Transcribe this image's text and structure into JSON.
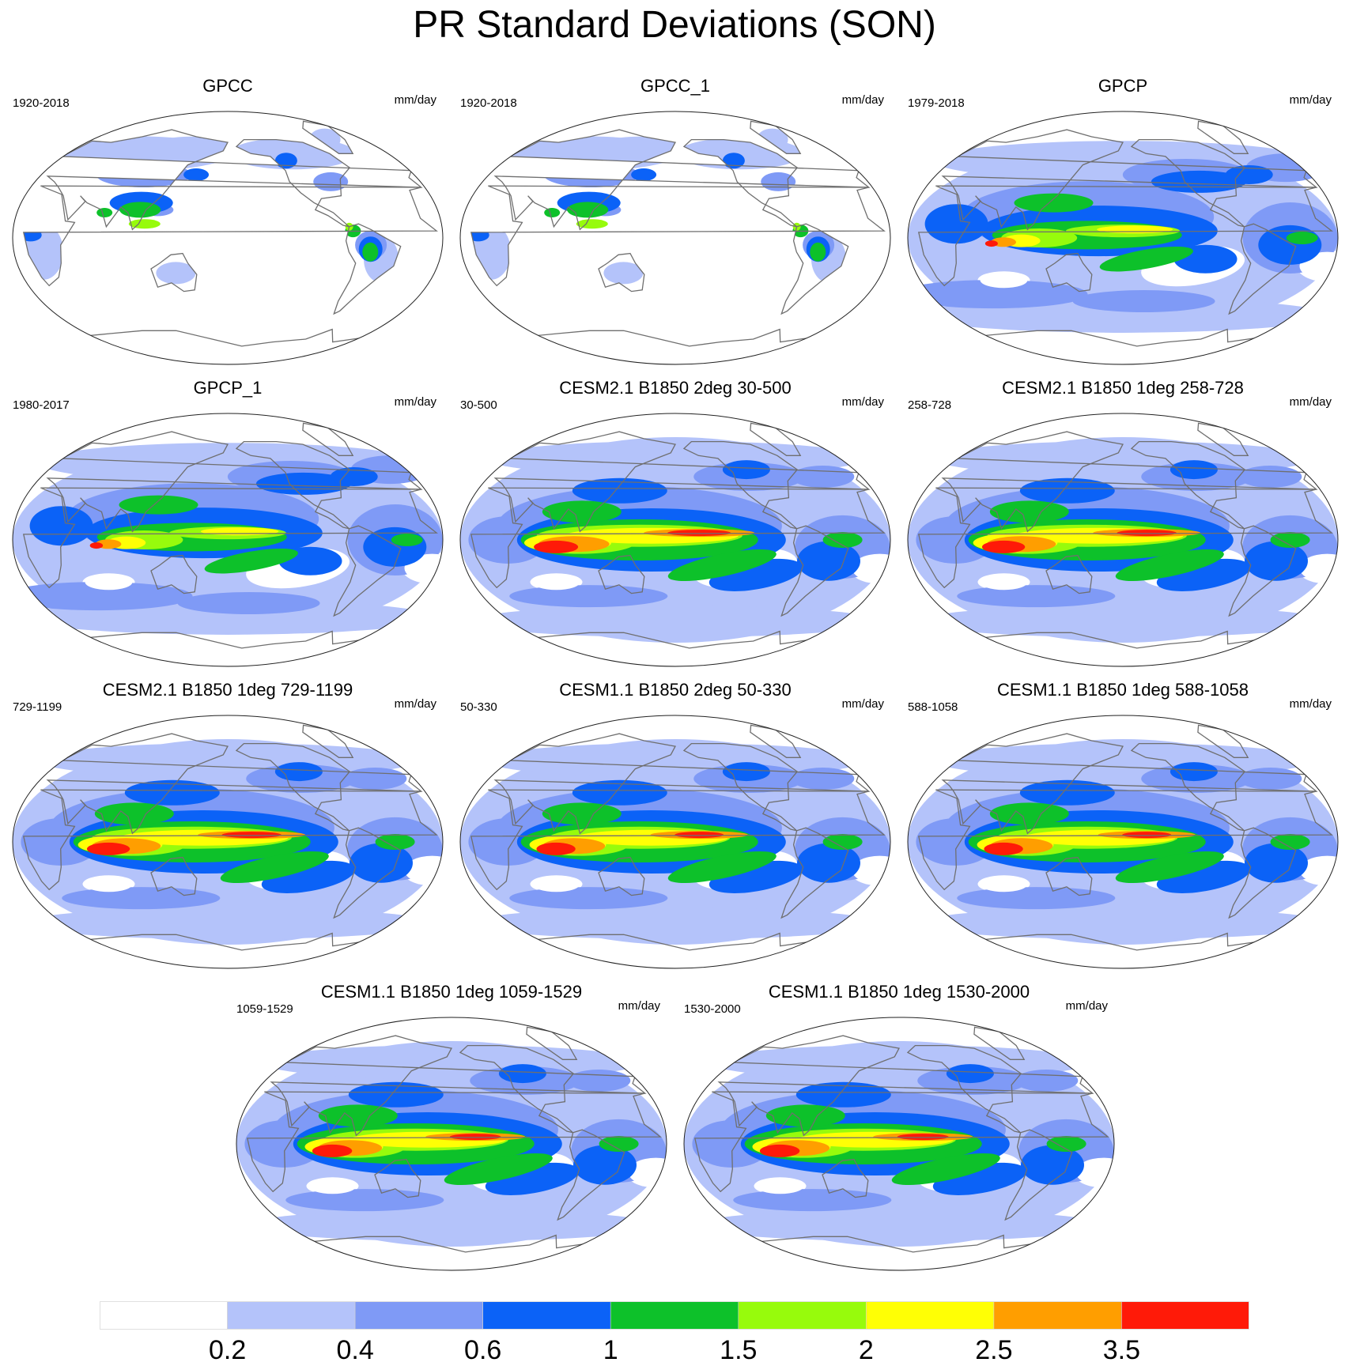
{
  "title": "PR Standard Deviations (SON)",
  "legend": {
    "colors": [
      "#ffffff",
      "#b4c3fa",
      "#7f9af6",
      "#0b62f7",
      "#0dc12a",
      "#97fb0c",
      "#ffff05",
      "#ff9e00",
      "#ff1a08"
    ],
    "labels": [
      "0.2",
      "0.4",
      "0.6",
      "1",
      "1.5",
      "2",
      "2.5",
      "3.5"
    ]
  },
  "panels": [
    {
      "title": "GPCC",
      "years": "1920-2018",
      "units": "mm/day",
      "kind": "land",
      "intensity": 0.55
    },
    {
      "title": "GPCC_1",
      "years": "1920-2018",
      "units": "mm/day",
      "kind": "land",
      "intensity": 0.55
    },
    {
      "title": "GPCP",
      "years": "1979-2018",
      "units": "mm/day",
      "kind": "obs",
      "intensity": 0.8
    },
    {
      "title": "GPCP_1",
      "years": "1980-2017",
      "units": "mm/day",
      "kind": "obs",
      "intensity": 0.82
    },
    {
      "title": "CESM2.1 B1850 2deg 30-500",
      "years": "30-500",
      "units": "mm/day",
      "kind": "model",
      "intensity": 1.0
    },
    {
      "title": "CESM2.1 B1850 1deg 258-728",
      "years": "258-728",
      "units": "mm/day",
      "kind": "model",
      "intensity": 0.97
    },
    {
      "title": "CESM2.1 B1850 1deg 729-1199",
      "years": "729-1199",
      "units": "mm/day",
      "kind": "model",
      "intensity": 0.97
    },
    {
      "title": "CESM1.1 B1850 2deg 50-330",
      "years": "50-330",
      "units": "mm/day",
      "kind": "model",
      "intensity": 0.88
    },
    {
      "title": "CESM1.1 B1850 1deg 588-1058",
      "years": "588-1058",
      "units": "mm/day",
      "kind": "model",
      "intensity": 0.88
    },
    {
      "title": "CESM1.1 B1850 1deg 1059-1529",
      "years": "1059-1529",
      "units": "mm/day",
      "kind": "model",
      "intensity": 0.9
    },
    {
      "title": "CESM1.1 B1850 1deg 1530-2000",
      "years": "1530-2000",
      "units": "mm/day",
      "kind": "model",
      "intensity": 0.9
    }
  ]
}
